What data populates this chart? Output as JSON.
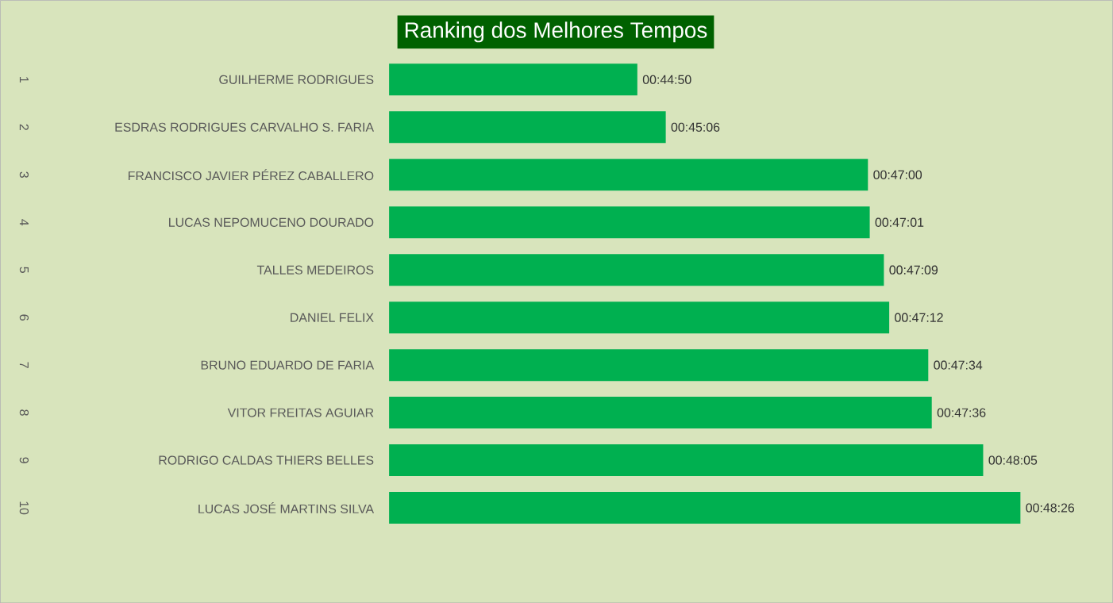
{
  "chart_data": {
    "type": "bar",
    "orientation": "horizontal",
    "title": "Ranking dos Melhores Tempos",
    "categories": [
      "GUILHERME RODRIGUES",
      "ESDRAS RODRIGUES CARVALHO S. FARIA",
      "FRANCISCO JAVIER PÉREZ CABALLERO",
      "LUCAS NEPOMUCENO DOURADO",
      "TALLES MEDEIROS",
      "DANIEL FELIX",
      "BRUNO EDUARDO DE FARIA",
      "VITOR FREITAS AGUIAR",
      "RODRIGO CALDAS THIERS BELLES",
      "LUCAS JOSÉ MARTINS SILVA"
    ],
    "values": [
      44.833,
      45.1,
      47.0,
      47.017,
      47.15,
      47.2,
      47.567,
      47.6,
      48.083,
      48.433
    ],
    "value_labels": [
      "00:44:50",
      "00:45:06",
      "00:47:00",
      "00:47:01",
      "00:47:09",
      "00:47:12",
      "00:47:34",
      "00:47:36",
      "00:48:05",
      "00:48:26"
    ],
    "color": "#00b050",
    "xlim": [
      42.5,
      49.3
    ],
    "tick_labels": "y",
    "annotations": [
      "1",
      "2",
      "3",
      "4",
      "5",
      "6",
      "7",
      "8",
      "9",
      "10"
    ]
  }
}
